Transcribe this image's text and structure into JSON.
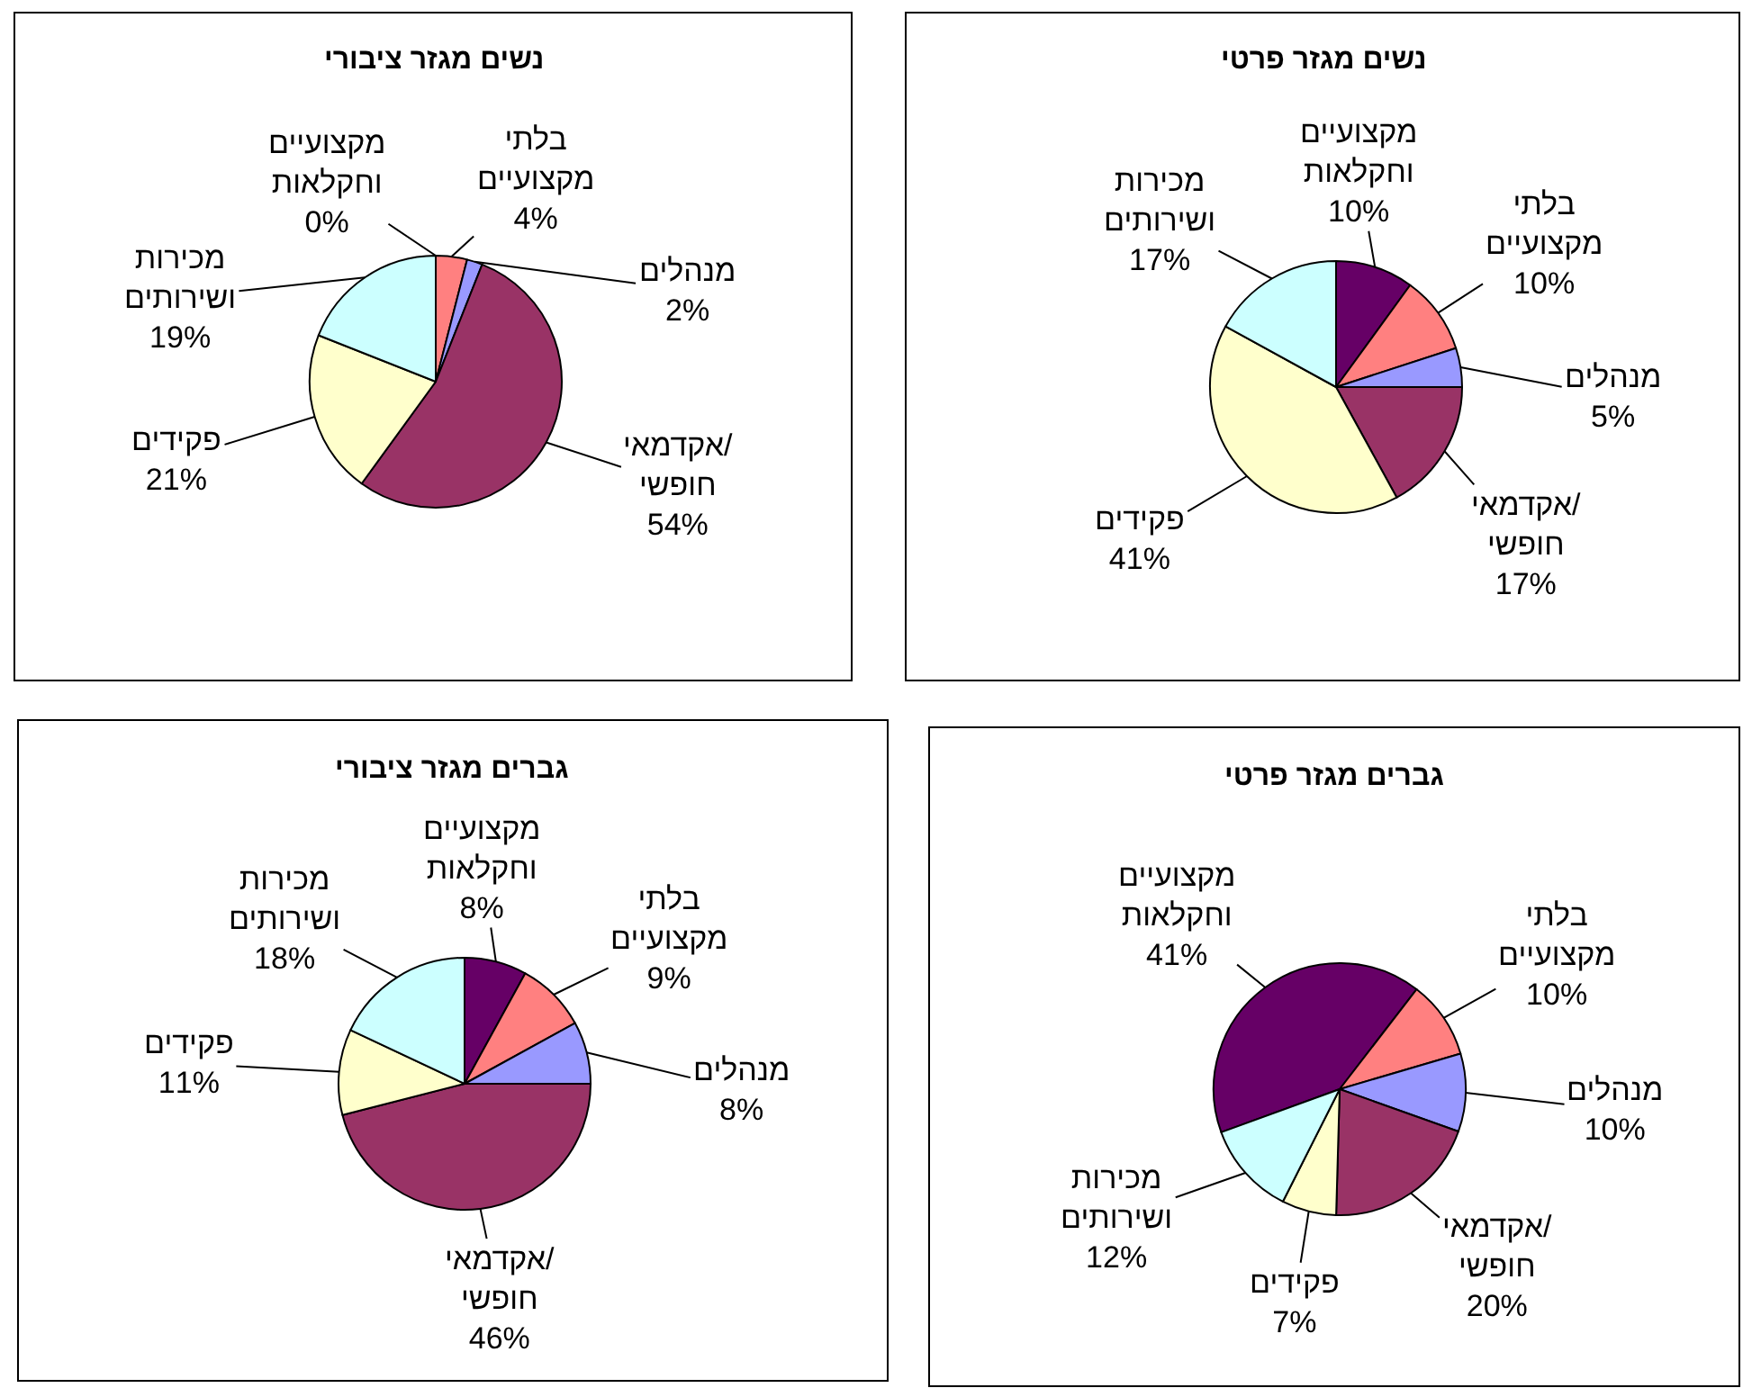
{
  "chart_data": [
    {
      "type": "pie",
      "title": "נשים מגזר ציבורי",
      "categories": [
        "מקצועיים וחקלאות",
        "בלתי מקצועיים",
        "מנהלים",
        "אקדמאי/חופשי",
        "פקידים",
        "מכירות ושירותים"
      ],
      "values": [
        0,
        4,
        2,
        54,
        21,
        19
      ],
      "value_labels": [
        "0%",
        "4%",
        "2%",
        "54%",
        "21%",
        "19%"
      ],
      "colors": [
        "#660066",
        "#ff8080",
        "#9999ff",
        "#993366",
        "#ffffcc",
        "#ccffff"
      ]
    },
    {
      "type": "pie",
      "title": "נשים מגזר פרטי",
      "categories": [
        "מקצועיים וחקלאות",
        "בלתי מקצועיים",
        "מנהלים",
        "אקדמאי/חופשי",
        "פקידים",
        "מכירות ושירותים"
      ],
      "values": [
        10,
        10,
        5,
        17,
        41,
        17
      ],
      "value_labels": [
        "10%",
        "10%",
        "5%",
        "17%",
        "41%",
        "17%"
      ],
      "colors": [
        "#660066",
        "#ff8080",
        "#9999ff",
        "#993366",
        "#ffffcc",
        "#ccffff"
      ]
    },
    {
      "type": "pie",
      "title": "גברים מגזר ציבורי",
      "categories": [
        "מקצועיים וחקלאות",
        "בלתי מקצועיים",
        "מנהלים",
        "אקדמאי/חופשי",
        "פקידים",
        "מכירות ושירותים"
      ],
      "values": [
        8,
        9,
        8,
        46,
        11,
        18
      ],
      "value_labels": [
        "8%",
        "9%",
        "8%",
        "46%",
        "11%",
        "18%"
      ],
      "colors": [
        "#660066",
        "#ff8080",
        "#9999ff",
        "#993366",
        "#ffffcc",
        "#ccffff"
      ]
    },
    {
      "type": "pie",
      "title": "גברים מגזר פרטי",
      "categories": [
        "מקצועיים וחקלאות",
        "בלתי מקצועיים",
        "מנהלים",
        "אקדמאי/חופשי",
        "פקידים",
        "מכירות ושירותים"
      ],
      "values": [
        41,
        10,
        10,
        20,
        7,
        12
      ],
      "value_labels": [
        "41%",
        "10%",
        "10%",
        "20%",
        "7%",
        "12%"
      ],
      "colors": [
        "#660066",
        "#ff8080",
        "#9999ff",
        "#993366",
        "#ffffcc",
        "#ccffff"
      ]
    }
  ]
}
